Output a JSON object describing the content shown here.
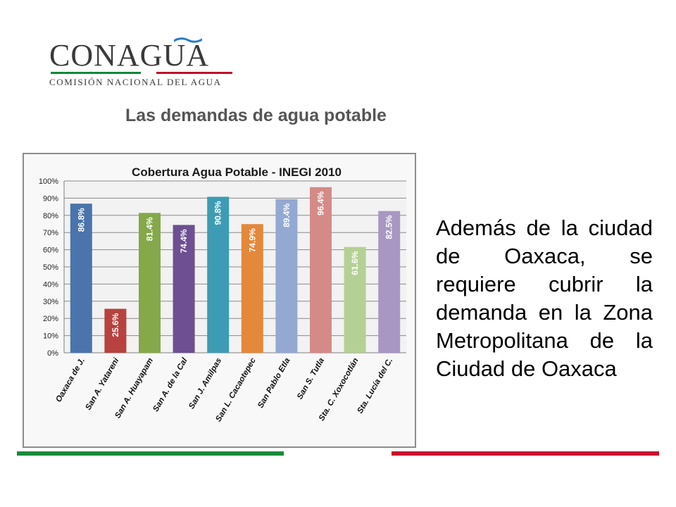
{
  "logo": {
    "wordmark": "CONAGUA",
    "subtitle": "COMISIÓN NACIONAL DEL AGUA",
    "icon": "water-wave-icon",
    "colors": {
      "text": "#3a3a3a",
      "green": "#0b8a3b",
      "red": "#c0102a",
      "wave": "#2b7cc0"
    }
  },
  "page": {
    "title": "Las demandas de agua potable",
    "body": "Además de la ciudad de Oaxaca, se requiere cubrir la demanda en la Zona Metropolitana de la Ciudad de Oaxaca"
  },
  "footer": {
    "green": "#1a8a3a",
    "red": "#c8102e"
  },
  "chart_data": {
    "type": "bar",
    "title": "Cobertura Agua Potable - INEGI 2010",
    "xlabel": "",
    "ylabel": "",
    "ylim": [
      0,
      100
    ],
    "yticks": [
      0,
      10,
      20,
      30,
      40,
      50,
      60,
      70,
      80,
      90,
      100
    ],
    "ytick_labels": [
      "0%",
      "10%",
      "20%",
      "30%",
      "40%",
      "50%",
      "60%",
      "70%",
      "80%",
      "90%",
      "100%"
    ],
    "grid": true,
    "legend": "none",
    "categories": [
      "Oaxaca de J.",
      "San A. Yatareni",
      "San A. Huayapam",
      "San A. de la Cal",
      "San J. Amilpas",
      "San L. Cacaotepec",
      "San Pablo Etla",
      "San S. Tutla",
      "Sta. C. Xoxocotlán",
      "Sta. Lucía del C."
    ],
    "values": [
      86.8,
      25.6,
      81.4,
      74.4,
      90.8,
      74.9,
      89.4,
      96.4,
      61.6,
      82.5
    ],
    "data_labels": [
      "86.8%",
      "25.6%",
      "81.4%",
      "74.4%",
      "90.8%",
      "74.9%",
      "89.4%",
      "96.4%",
      "61.6%",
      "82.5%"
    ],
    "colors": [
      "#4a74ab",
      "#b7423f",
      "#84a84a",
      "#6d4f92",
      "#3d9cb3",
      "#e4883b",
      "#93a9d2",
      "#d48b88",
      "#b5d095",
      "#a897c2"
    ]
  }
}
